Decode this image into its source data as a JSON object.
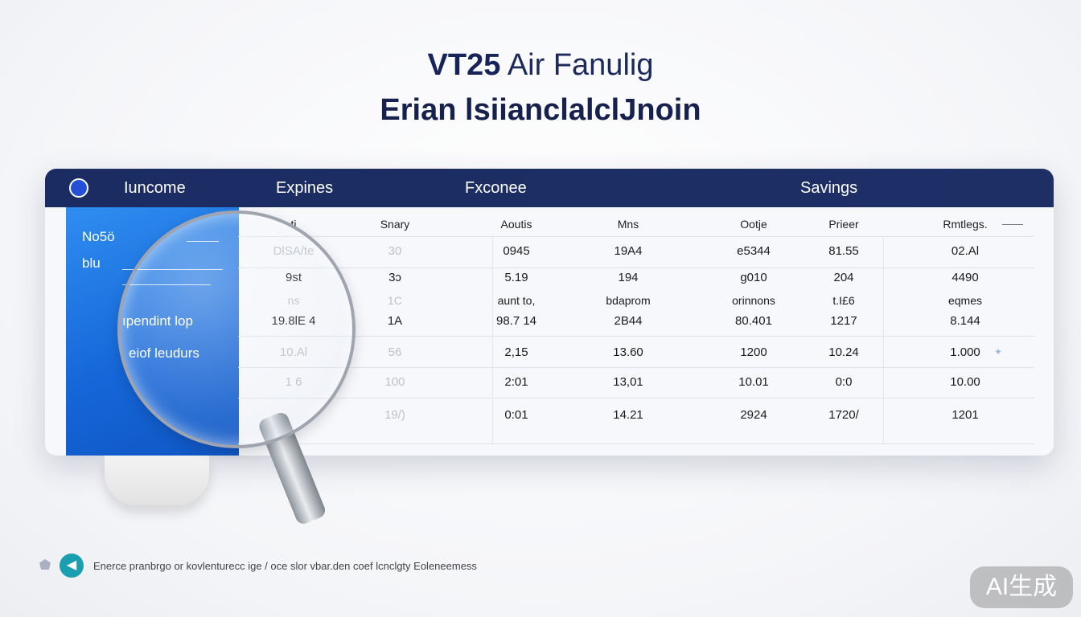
{
  "title": {
    "logo": "VT25",
    "rest": "Air Fanulig"
  },
  "subtitle": "Erian lsiianclalclJnoin",
  "header": {
    "tabs": [
      "Iuncome",
      "Expines",
      "Fxconee",
      "Savings"
    ]
  },
  "left_panel": {
    "items": [
      "Nо5ö",
      "blu",
      "ıpendint lop",
      "eiof leudurs"
    ]
  },
  "table": {
    "columns": [
      "ti",
      "Snary",
      "Aoutis",
      "Mns",
      "Ootje",
      "Prieer",
      "Rmtlegs."
    ],
    "rows": [
      [
        "DlSA/te",
        "30",
        "0945",
        "19A4",
        "e5344",
        "81.55",
        "02.Al"
      ],
      [
        "9st",
        "3ɔ",
        "5.19",
        "194",
        "ɡ010",
        "204",
        "4490"
      ],
      [
        "ns",
        "1C",
        "aunt to,",
        "bdaprom",
        "orinnons",
        "t.I£6",
        "eqmes"
      ],
      [
        "19.8lE 4",
        "1A",
        "98.7 14",
        "2B44",
        "80.401",
        "1217",
        "8.144"
      ],
      [
        "10.Al",
        "56",
        "2,15",
        "13.60",
        "1200",
        "10.24",
        "1.000"
      ],
      [
        "1 6",
        "100",
        "2:01",
        "13,01",
        "10.01",
        "0:0",
        "10.00"
      ],
      [
        "",
        "19/)",
        "0:01",
        "14.21",
        "2924",
        "1720/",
        "1201"
      ]
    ]
  },
  "footer": {
    "text": "Enerce pranbrgo or kovlenturecc ige / oce slor vbar.den coef lcnclgty Eoleneemess"
  },
  "badge": "AI生成",
  "colors": {
    "header": "#1b2c63",
    "panel": "#1a6fe0",
    "accent": "#1a9fb0"
  }
}
